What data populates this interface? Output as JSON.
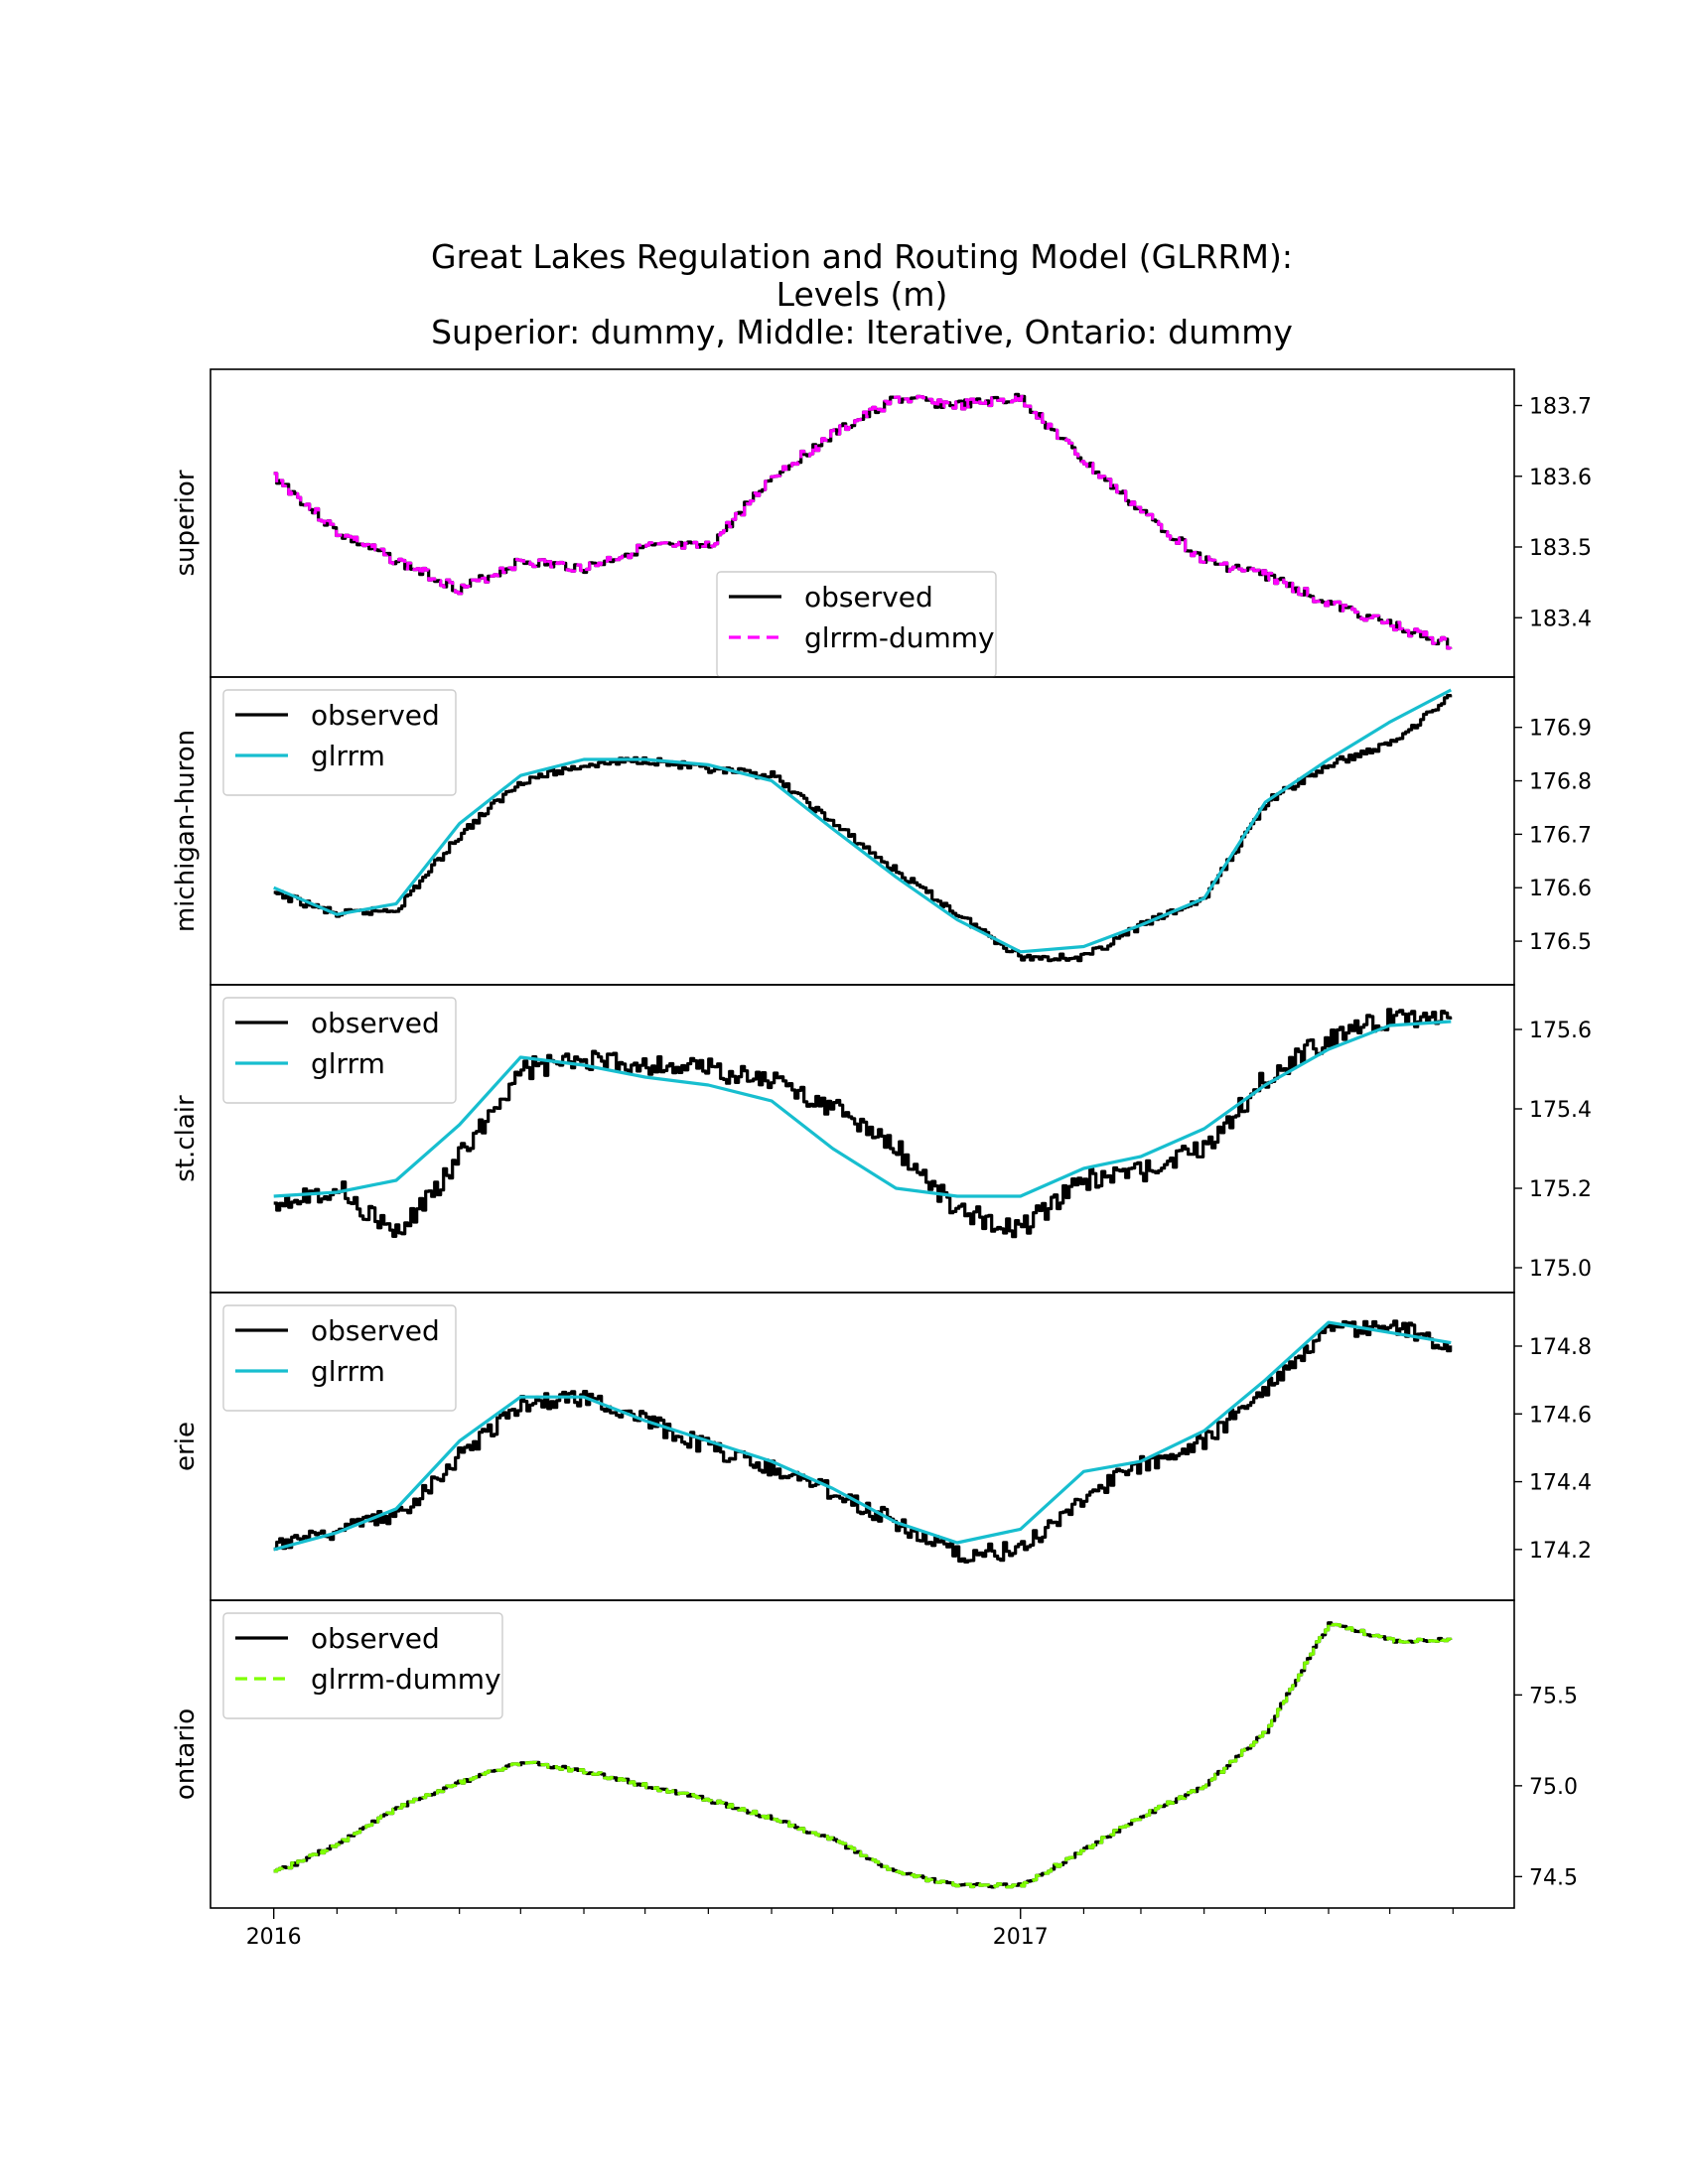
{
  "chart_data": {
    "type": "line",
    "title": [
      "Great Lakes Regulation and Routing Model (GLRRM):",
      "Levels (m)",
      "Superior: dummy, Middle: Iterative, Ontario: dummy"
    ],
    "x_axis": {
      "tick_labels": [
        "2016",
        "2017"
      ],
      "tick_values": [
        "2016-01-01",
        "2017-01-01"
      ],
      "range": [
        "2015-12-01",
        "2017-08-31"
      ],
      "minor_ticks": "monthly"
    },
    "legend_location": [
      "lower-center",
      "upper-left",
      "upper-left",
      "upper-left",
      "upper-left"
    ],
    "panels": [
      {
        "ylabel": "superior",
        "ylim": [
          183.34,
          183.74
        ],
        "yticks": [
          183.4,
          183.5,
          183.6,
          183.7
        ],
        "ytick_labels": [
          "183.4",
          "183.5",
          "183.6",
          "183.7"
        ],
        "series": [
          {
            "name": "observed",
            "color": "#000000",
            "style": "solid",
            "x": [
              "2016-01-01",
              "2016-02-01",
              "2016-03-01",
              "2016-04-01",
              "2016-05-01",
              "2016-06-01",
              "2016-07-01",
              "2016-08-01",
              "2016-09-01",
              "2016-10-01",
              "2016-11-01",
              "2016-12-01",
              "2017-01-01",
              "2017-02-01",
              "2017-03-01",
              "2017-04-01",
              "2017-05-01",
              "2017-06-01",
              "2017-07-01",
              "2017-07-31"
            ],
            "y": [
              183.6,
              183.52,
              183.48,
              183.44,
              183.48,
              183.47,
              183.5,
              183.5,
              183.6,
              183.66,
              183.71,
              183.7,
              183.71,
              183.62,
              183.55,
              183.48,
              183.46,
              183.42,
              183.39,
              183.36
            ]
          },
          {
            "name": "glrrm-dummy",
            "color": "#ff00ff",
            "style": "dashed",
            "x": [
              "2016-01-01",
              "2016-02-01",
              "2016-03-01",
              "2016-04-01",
              "2016-05-01",
              "2016-06-01",
              "2016-07-01",
              "2016-08-01",
              "2016-09-01",
              "2016-10-01",
              "2016-11-01",
              "2016-12-01",
              "2017-01-01",
              "2017-02-01",
              "2017-03-01",
              "2017-04-01",
              "2017-05-01",
              "2017-06-01",
              "2017-07-01",
              "2017-07-31"
            ],
            "y": [
              183.6,
              183.52,
              183.48,
              183.44,
              183.48,
              183.47,
              183.5,
              183.5,
              183.6,
              183.66,
              183.71,
              183.7,
              183.71,
              183.62,
              183.55,
              183.48,
              183.46,
              183.42,
              183.39,
              183.36
            ]
          }
        ]
      },
      {
        "ylabel": "michigan-huron",
        "ylim": [
          176.45,
          176.97
        ],
        "yticks": [
          176.5,
          176.6,
          176.7,
          176.8,
          176.9
        ],
        "ytick_labels": [
          "176.5",
          "176.6",
          "176.7",
          "176.8",
          "176.9"
        ],
        "series": [
          {
            "name": "observed",
            "color": "#000000",
            "style": "solid",
            "x": [
              "2016-01-01",
              "2016-02-01",
              "2016-03-01",
              "2016-04-01",
              "2016-05-01",
              "2016-06-01",
              "2016-07-01",
              "2016-08-01",
              "2016-09-01",
              "2016-10-01",
              "2016-11-01",
              "2016-12-01",
              "2017-01-01",
              "2017-02-01",
              "2017-03-01",
              "2017-04-01",
              "2017-05-01",
              "2017-06-01",
              "2017-07-01",
              "2017-07-31"
            ],
            "y": [
              176.59,
              176.55,
              176.56,
              176.7,
              176.8,
              176.83,
              176.84,
              176.82,
              176.81,
              176.72,
              176.63,
              176.55,
              176.47,
              176.47,
              176.53,
              176.58,
              176.76,
              176.83,
              176.87,
              176.96
            ]
          },
          {
            "name": "glrrm",
            "color": "#17becf",
            "style": "solid",
            "x": [
              "2016-01-01",
              "2016-02-01",
              "2016-03-01",
              "2016-04-01",
              "2016-05-01",
              "2016-06-01",
              "2016-07-01",
              "2016-08-01",
              "2016-09-01",
              "2016-10-01",
              "2016-11-01",
              "2016-12-01",
              "2017-01-01",
              "2017-02-01",
              "2017-03-01",
              "2017-04-01",
              "2017-05-01",
              "2017-06-01",
              "2017-07-01",
              "2017-07-31"
            ],
            "y": [
              176.6,
              176.55,
              176.57,
              176.72,
              176.81,
              176.84,
              176.84,
              176.83,
              176.8,
              176.71,
              176.62,
              176.54,
              176.48,
              176.49,
              176.53,
              176.58,
              176.76,
              176.84,
              176.91,
              176.97
            ]
          }
        ]
      },
      {
        "ylabel": "st.clair",
        "ylim": [
          174.98,
          175.68
        ],
        "yticks": [
          175.0,
          175.2,
          175.4,
          175.6
        ],
        "ytick_labels": [
          "175.0",
          "175.2",
          "175.4",
          "175.6"
        ],
        "series": [
          {
            "name": "observed",
            "color": "#000000",
            "style": "solid",
            "x": [
              "2016-01-01",
              "2016-02-01",
              "2016-03-01",
              "2016-04-01",
              "2016-05-01",
              "2016-06-01",
              "2016-07-01",
              "2016-08-01",
              "2016-09-01",
              "2016-10-01",
              "2016-11-01",
              "2016-12-01",
              "2017-01-01",
              "2017-02-01",
              "2017-03-01",
              "2017-04-01",
              "2017-05-01",
              "2017-06-01",
              "2017-07-01",
              "2017-07-31"
            ],
            "y": [
              175.17,
              175.2,
              175.08,
              175.28,
              175.5,
              175.52,
              175.51,
              175.5,
              175.47,
              175.4,
              175.3,
              175.14,
              175.1,
              175.22,
              175.24,
              175.3,
              175.48,
              175.58,
              175.63,
              175.63
            ]
          },
          {
            "name": "glrrm",
            "color": "#17becf",
            "style": "solid",
            "x": [
              "2016-01-01",
              "2016-02-01",
              "2016-03-01",
              "2016-04-01",
              "2016-05-01",
              "2016-06-01",
              "2016-07-01",
              "2016-08-01",
              "2016-09-01",
              "2016-10-01",
              "2016-11-01",
              "2016-12-01",
              "2017-01-01",
              "2017-02-01",
              "2017-03-01",
              "2017-04-01",
              "2017-05-01",
              "2017-06-01",
              "2017-07-01",
              "2017-07-31"
            ],
            "y": [
              175.18,
              175.19,
              175.22,
              175.36,
              175.53,
              175.51,
              175.48,
              175.46,
              175.42,
              175.3,
              175.2,
              175.18,
              175.18,
              175.25,
              175.28,
              175.35,
              175.46,
              175.55,
              175.61,
              175.62
            ]
          }
        ]
      },
      {
        "ylabel": "erie",
        "ylim": [
          174.1,
          174.92
        ],
        "yticks": [
          174.2,
          174.4,
          174.6,
          174.8
        ],
        "ytick_labels": [
          "174.2",
          "174.4",
          "174.6",
          "174.8"
        ],
        "series": [
          {
            "name": "observed",
            "color": "#000000",
            "style": "solid",
            "x": [
              "2016-01-01",
              "2016-02-01",
              "2016-03-01",
              "2016-04-01",
              "2016-05-01",
              "2016-06-01",
              "2016-07-01",
              "2016-08-01",
              "2016-09-01",
              "2016-10-01",
              "2016-11-01",
              "2016-12-01",
              "2017-01-01",
              "2017-02-01",
              "2017-03-01",
              "2017-04-01",
              "2017-05-01",
              "2017-06-01",
              "2017-07-01",
              "2017-07-31"
            ],
            "y": [
              174.22,
              174.26,
              174.3,
              174.48,
              174.63,
              174.65,
              174.58,
              174.5,
              174.44,
              174.37,
              174.28,
              174.18,
              174.2,
              174.36,
              174.45,
              174.52,
              174.68,
              174.85,
              174.86,
              174.8
            ]
          },
          {
            "name": "glrrm",
            "color": "#17becf",
            "style": "solid",
            "x": [
              "2016-01-01",
              "2016-02-01",
              "2016-03-01",
              "2016-04-01",
              "2016-05-01",
              "2016-06-01",
              "2016-07-01",
              "2016-08-01",
              "2016-09-01",
              "2016-10-01",
              "2016-11-01",
              "2016-12-01",
              "2017-01-01",
              "2017-02-01",
              "2017-03-01",
              "2017-04-01",
              "2017-05-01",
              "2017-06-01",
              "2017-07-01",
              "2017-07-31"
            ],
            "y": [
              174.2,
              174.25,
              174.32,
              174.52,
              174.65,
              174.65,
              174.58,
              174.52,
              174.46,
              174.38,
              174.28,
              174.22,
              174.26,
              174.43,
              174.46,
              174.55,
              174.7,
              174.87,
              174.84,
              174.81
            ]
          }
        ]
      },
      {
        "ylabel": "ontario",
        "ylim": [
          74.42,
          75.95
        ],
        "yticks": [
          74.5,
          75.0,
          75.5
        ],
        "ytick_labels": [
          "74.5",
          "75.0",
          "75.5"
        ],
        "series": [
          {
            "name": "observed",
            "color": "#000000",
            "style": "solid",
            "x": [
              "2016-01-01",
              "2016-02-01",
              "2016-03-01",
              "2016-04-01",
              "2016-05-01",
              "2016-06-01",
              "2016-07-01",
              "2016-08-01",
              "2016-09-01",
              "2016-10-01",
              "2016-11-01",
              "2016-12-01",
              "2017-01-01",
              "2017-02-01",
              "2017-03-01",
              "2017-04-01",
              "2017-05-01",
              "2017-06-01",
              "2017-07-01",
              "2017-07-31"
            ],
            "y": [
              74.52,
              74.68,
              74.88,
              75.02,
              75.13,
              75.08,
              75.0,
              74.92,
              74.82,
              74.7,
              74.52,
              74.45,
              74.45,
              74.65,
              74.83,
              75.0,
              75.3,
              75.9,
              75.8,
              75.8
            ]
          },
          {
            "name": "glrrm-dummy",
            "color": "#7fff00",
            "style": "dashed",
            "x": [
              "2016-01-01",
              "2016-02-01",
              "2016-03-01",
              "2016-04-01",
              "2016-05-01",
              "2016-06-01",
              "2016-07-01",
              "2016-08-01",
              "2016-09-01",
              "2016-10-01",
              "2016-11-01",
              "2016-12-01",
              "2017-01-01",
              "2017-02-01",
              "2017-03-01",
              "2017-04-01",
              "2017-05-01",
              "2017-06-01",
              "2017-07-01",
              "2017-07-31"
            ],
            "y": [
              74.52,
              74.68,
              74.88,
              75.02,
              75.13,
              75.08,
              75.0,
              74.92,
              74.82,
              74.7,
              74.52,
              74.45,
              74.45,
              74.65,
              74.83,
              75.0,
              75.3,
              75.9,
              75.8,
              75.8
            ]
          }
        ]
      }
    ]
  }
}
